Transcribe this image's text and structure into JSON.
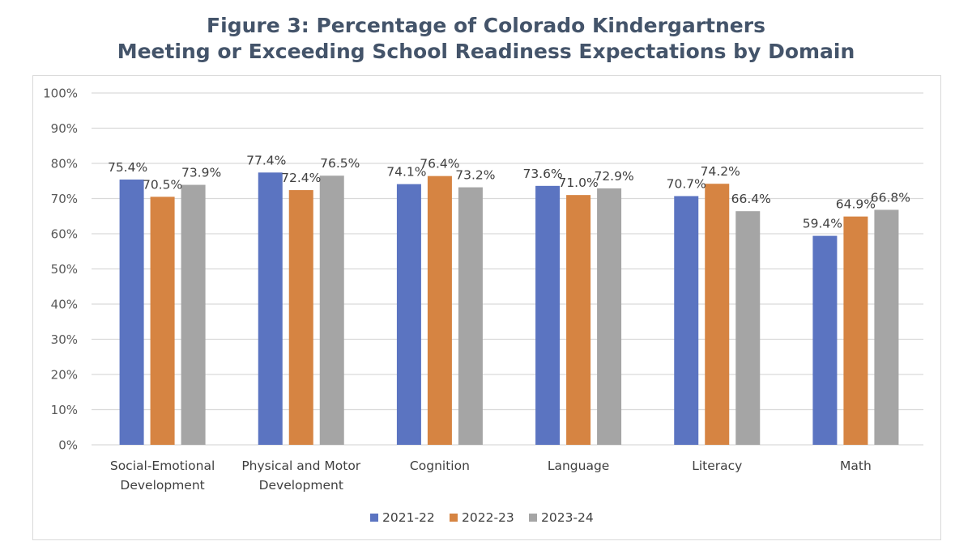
{
  "chart_data": {
    "type": "bar",
    "title_lines": [
      "Figure 3: Percentage of Colorado Kindergartners",
      "Meeting or Exceeding School Readiness Expectations by Domain"
    ],
    "categories": [
      [
        "Social-Emotional",
        "Development"
      ],
      [
        "Physical and Motor",
        "Development"
      ],
      [
        "Cognition"
      ],
      [
        "Language"
      ],
      [
        "Literacy"
      ],
      [
        "Math"
      ]
    ],
    "series": [
      {
        "name": "2021-22",
        "color": "#5b74c1",
        "values": [
          75.4,
          77.4,
          74.1,
          73.6,
          70.7,
          59.4
        ],
        "labels": [
          "75.4%",
          "77.4%",
          "74.1%",
          "73.6%",
          "70.7%",
          "59.4%"
        ]
      },
      {
        "name": "2022-23",
        "color": "#d68442",
        "values": [
          70.5,
          72.4,
          76.4,
          71.0,
          74.2,
          64.9
        ],
        "labels": [
          "70.5%",
          "72.4%",
          "76.4%",
          "71.0%",
          "74.2%",
          "64.9%"
        ]
      },
      {
        "name": "2023-24",
        "color": "#a5a5a5",
        "values": [
          73.9,
          76.5,
          73.2,
          72.9,
          66.4,
          66.8
        ],
        "labels": [
          "73.9%",
          "76.5%",
          "73.2%",
          "72.9%",
          "66.4%",
          "66.8%"
        ]
      }
    ],
    "y_ticks": [
      0,
      10,
      20,
      30,
      40,
      50,
      60,
      70,
      80,
      90,
      100
    ],
    "y_tick_labels": [
      "0%",
      "10%",
      "20%",
      "30%",
      "40%",
      "50%",
      "60%",
      "70%",
      "80%",
      "90%",
      "100%"
    ],
    "ylim": [
      0,
      100
    ],
    "xlabel": "",
    "ylabel": "",
    "grid": true,
    "legend_position": "bottom",
    "gridline_color": "#d9d9d9"
  }
}
